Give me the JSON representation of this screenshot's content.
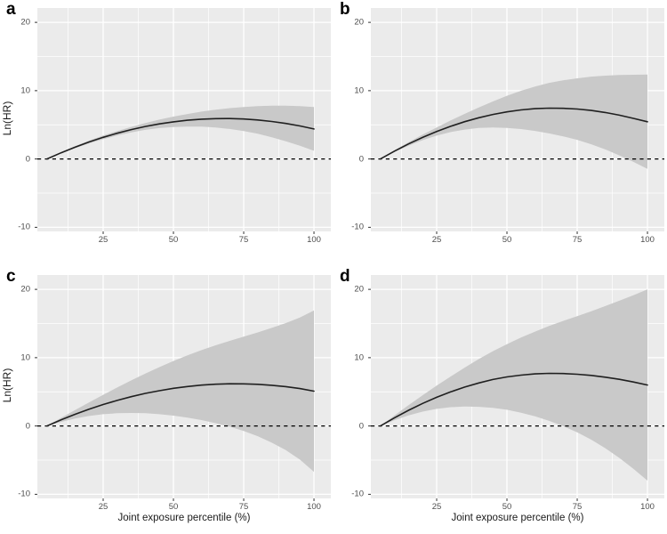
{
  "figure": {
    "background": "#ffffff"
  },
  "chart_data": {
    "type": "line",
    "description": "2x2 grid of restricted-cubic-spline style plots of Ln(HR) vs joint exposure percentile, each with a fitted curve, gray 95% confidence ribbon pinched at the 5th-percentile reference point, and a dashed horizontal reference line at 0.",
    "x_label": "Joint exposure percentile (%)",
    "y_label": "Ln(HR)",
    "x_ticks": [
      25,
      50,
      75,
      100
    ],
    "x_tick_labels": [
      "25",
      "50",
      "75",
      "100"
    ],
    "y_ticks": [
      20,
      10,
      0,
      -10
    ],
    "y_tick_labels": [
      "20",
      "10",
      "0",
      "-10"
    ],
    "x_minor_ticks": [
      12.5,
      37.5,
      62.5,
      87.5
    ],
    "y_minor_ticks": [
      15,
      5,
      -5
    ],
    "x_range": [
      1.58,
      106.0
    ],
    "y_range": [
      -10.6,
      22.1
    ],
    "reference_line_y": 0,
    "grid": "on",
    "legend": "none",
    "x": [
      5,
      10,
      15,
      20,
      25,
      30,
      35,
      40,
      45,
      50,
      55,
      60,
      65,
      70,
      75,
      80,
      85,
      90,
      95,
      100
    ],
    "panels": [
      {
        "label": "a",
        "mid": [
          0,
          0.9,
          1.73,
          2.49,
          3.17,
          3.77,
          4.3,
          4.76,
          5.14,
          5.44,
          5.67,
          5.83,
          5.91,
          5.92,
          5.85,
          5.71,
          5.49,
          5.2,
          4.84,
          4.4
        ],
        "upper": [
          0,
          0.98,
          1.88,
          2.69,
          3.44,
          4.1,
          4.7,
          5.26,
          5.76,
          6.2,
          6.59,
          6.93,
          7.21,
          7.44,
          7.61,
          7.73,
          7.79,
          7.8,
          7.74,
          7.6
        ],
        "lower": [
          0,
          0.82,
          1.58,
          2.29,
          2.9,
          3.44,
          3.9,
          4.26,
          4.52,
          4.68,
          4.75,
          4.73,
          4.61,
          4.4,
          4.09,
          3.69,
          3.19,
          2.6,
          1.94,
          1.2
        ]
      },
      {
        "label": "b",
        "mid": [
          0,
          1.15,
          2.2,
          3.16,
          4.02,
          4.79,
          5.46,
          6.04,
          6.52,
          6.9,
          7.18,
          7.36,
          7.44,
          7.42,
          7.31,
          7.1,
          6.8,
          6.41,
          5.95,
          5.45
        ],
        "upper": [
          0,
          1.27,
          2.45,
          3.56,
          4.62,
          5.64,
          6.61,
          7.54,
          8.42,
          9.25,
          9.98,
          10.61,
          11.14,
          11.52,
          11.81,
          12.05,
          12.2,
          12.29,
          12.33,
          12.35
        ],
        "lower": [
          0,
          1.03,
          1.95,
          2.76,
          3.42,
          3.94,
          4.31,
          4.54,
          4.62,
          4.55,
          4.38,
          4.11,
          3.74,
          3.32,
          2.81,
          2.15,
          1.4,
          0.53,
          -0.43,
          -1.45
        ]
      },
      {
        "label": "c",
        "mid": [
          0,
          0.89,
          1.71,
          2.46,
          3.14,
          3.75,
          4.29,
          4.77,
          5.17,
          5.51,
          5.78,
          5.98,
          6.11,
          6.18,
          6.17,
          6.1,
          5.96,
          5.76,
          5.48,
          5.1
        ],
        "upper": [
          0,
          1.19,
          2.33,
          3.46,
          4.56,
          5.63,
          6.67,
          7.67,
          8.61,
          9.51,
          10.34,
          11.1,
          11.81,
          12.46,
          13.07,
          13.7,
          14.36,
          15.06,
          15.88,
          16.9
        ],
        "lower": [
          0,
          0.59,
          1.09,
          1.46,
          1.72,
          1.87,
          1.91,
          1.87,
          1.73,
          1.51,
          1.22,
          0.86,
          0.41,
          -0.1,
          -0.73,
          -1.5,
          -2.44,
          -3.54,
          -4.92,
          -6.7
        ]
      },
      {
        "label": "d",
        "mid": [
          0,
          1.2,
          2.3,
          3.3,
          4.2,
          5.0,
          5.7,
          6.3,
          6.8,
          7.18,
          7.45,
          7.62,
          7.7,
          7.68,
          7.58,
          7.4,
          7.15,
          6.83,
          6.44,
          6.0
        ],
        "upper": [
          0,
          1.55,
          3.05,
          4.5,
          5.9,
          7.25,
          8.55,
          9.8,
          10.95,
          11.98,
          12.95,
          13.82,
          14.65,
          15.38,
          16.08,
          16.8,
          17.55,
          18.33,
          19.14,
          20.0
        ],
        "lower": [
          0,
          0.85,
          1.55,
          2.1,
          2.5,
          2.75,
          2.85,
          2.8,
          2.65,
          2.38,
          1.95,
          1.42,
          0.75,
          -0.02,
          -0.92,
          -2.0,
          -3.25,
          -4.67,
          -6.26,
          -8.0
        ]
      }
    ],
    "colors": {
      "panel_background": "#ebebeb",
      "grid_line": "#ffffff",
      "ribbon": "#c9c9c9",
      "curve": "#1f1f1f",
      "reference_line": "#000000",
      "tick_mark": "#333333",
      "tick_label": "#4d4d4d",
      "axis_title": "#1a1a1a"
    }
  }
}
